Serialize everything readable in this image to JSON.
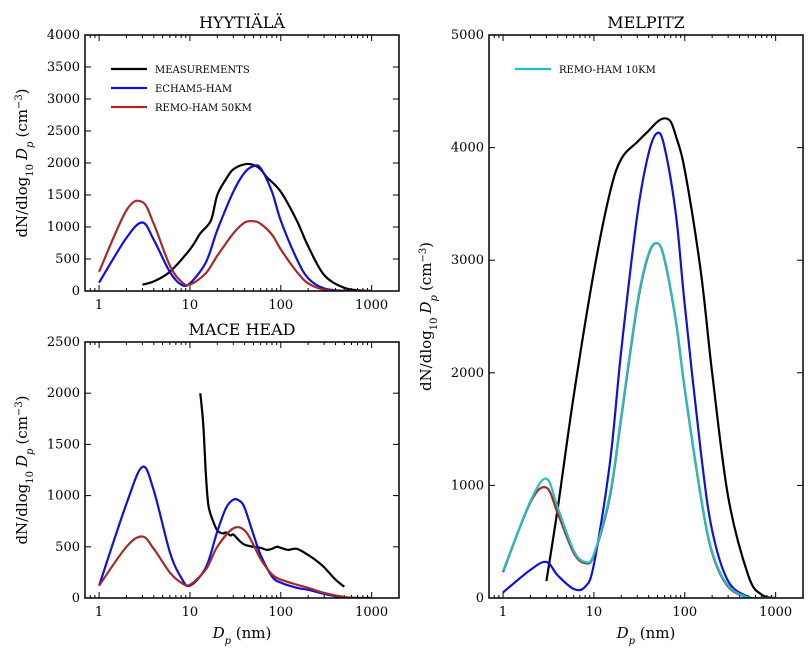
{
  "colors": {
    "MEASUREMENTS": "#000000",
    "ECHAM5-HAM": "#1010dd",
    "REMO-HAM 50KM": "#a52a2a",
    "REMO-HAM 10KM": "#20c0c0"
  },
  "chart_data": [
    {
      "id": "hyytiala",
      "type": "line",
      "title": "HYYTIÄLÄ",
      "xlabel": "",
      "ylabel": "dN/dlog10 Dp (cm−3)",
      "xscale": "log",
      "xlim": [
        0.7,
        2000
      ],
      "ylim": [
        0,
        4000
      ],
      "xticks": [
        1,
        10,
        100,
        1000
      ],
      "xtick_labels": [
        "1",
        "10",
        "100",
        "1000"
      ],
      "yticks": [
        0,
        500,
        1000,
        1500,
        2000,
        2500,
        3000,
        3500,
        4000
      ],
      "ytick_labels": [
        "0",
        "500",
        "1000",
        "1500",
        "2000",
        "2500",
        "3000",
        "3500",
        "4000"
      ],
      "legend": {
        "placement": "top-left",
        "entries": [
          "MEASUREMENTS",
          "ECHAM5-HAM",
          "REMO-HAM 50KM"
        ]
      },
      "series": [
        {
          "name": "MEASUREMENTS",
          "x": [
            3,
            4,
            6,
            10,
            13,
            17,
            20,
            25,
            30,
            40,
            50,
            60,
            70,
            100,
            150,
            200,
            300,
            500,
            800,
            1000
          ],
          "y": [
            100,
            150,
            300,
            650,
            900,
            1100,
            1500,
            1750,
            1900,
            1980,
            1970,
            1900,
            1780,
            1550,
            1100,
            700,
            250,
            50,
            5,
            0
          ]
        },
        {
          "name": "ECHAM5-HAM",
          "x": [
            1,
            2,
            3,
            4,
            6,
            8,
            10,
            15,
            20,
            30,
            40,
            50,
            60,
            80,
            100,
            150,
            200,
            300,
            500,
            700,
            1000
          ],
          "y": [
            130,
            830,
            1070,
            800,
            300,
            100,
            120,
            450,
            950,
            1550,
            1850,
            1950,
            1920,
            1550,
            1100,
            500,
            200,
            40,
            3,
            0,
            0
          ]
        },
        {
          "name": "REMO-HAM 50KM",
          "x": [
            1,
            2,
            3,
            4,
            6,
            8,
            10,
            15,
            20,
            30,
            40,
            50,
            60,
            80,
            100,
            150,
            200,
            300,
            500,
            700,
            1000
          ],
          "y": [
            300,
            1260,
            1390,
            1050,
            400,
            150,
            100,
            280,
            550,
            900,
            1070,
            1090,
            1050,
            880,
            650,
            300,
            120,
            20,
            0,
            0,
            0
          ]
        }
      ]
    },
    {
      "id": "macehead",
      "type": "line",
      "title": "MACE HEAD",
      "xlabel": "Dp (nm)",
      "ylabel": "dN/dlog10 Dp (cm−3)",
      "xscale": "log",
      "xlim": [
        0.7,
        2000
      ],
      "ylim": [
        0,
        2500
      ],
      "xticks": [
        1,
        10,
        100,
        1000
      ],
      "xtick_labels": [
        "1",
        "10",
        "100",
        "1000"
      ],
      "yticks": [
        0,
        500,
        1000,
        1500,
        2000,
        2500
      ],
      "ytick_labels": [
        "0",
        "500",
        "1000",
        "1500",
        "2000",
        "2500"
      ],
      "legend": null,
      "series": [
        {
          "name": "MEASUREMENTS",
          "x": [
            13,
            14,
            15,
            16,
            18,
            20,
            23,
            25,
            28,
            30,
            35,
            40,
            50,
            60,
            70,
            80,
            90,
            100,
            120,
            150,
            200,
            250,
            300,
            400,
            500
          ],
          "y": [
            2000,
            1700,
            1200,
            900,
            750,
            660,
            630,
            640,
            610,
            620,
            560,
            520,
            500,
            490,
            470,
            480,
            500,
            490,
            470,
            480,
            420,
            360,
            300,
            180,
            110
          ]
        },
        {
          "name": "ECHAM5-HAM",
          "x": [
            1,
            2,
            3,
            4,
            6,
            8,
            10,
            15,
            20,
            25,
            30,
            35,
            40,
            50,
            60,
            80,
            100,
            150,
            200,
            300,
            500,
            700,
            1000
          ],
          "y": [
            120,
            920,
            1280,
            1050,
            450,
            200,
            120,
            300,
            650,
            880,
            960,
            950,
            880,
            620,
            420,
            210,
            150,
            100,
            80,
            40,
            5,
            0,
            0
          ]
        },
        {
          "name": "REMO-HAM 50KM",
          "x": [
            1,
            2,
            3,
            4,
            6,
            8,
            10,
            15,
            20,
            30,
            40,
            50,
            60,
            80,
            100,
            150,
            200,
            300,
            500,
            700,
            1000
          ],
          "y": [
            120,
            500,
            600,
            480,
            250,
            150,
            130,
            280,
            500,
            680,
            660,
            520,
            380,
            230,
            180,
            130,
            100,
            50,
            10,
            0,
            0
          ]
        }
      ]
    },
    {
      "id": "melpitz",
      "type": "line",
      "title": "MELPITZ",
      "xlabel": "Dp (nm)",
      "ylabel": "dN/dlog10 Dp (cm−3)",
      "xscale": "log",
      "xlim": [
        0.7,
        2000
      ],
      "ylim": [
        0,
        5000
      ],
      "xticks": [
        1,
        10,
        100,
        1000
      ],
      "xtick_labels": [
        "1",
        "10",
        "100",
        "1000"
      ],
      "yticks": [
        0,
        1000,
        2000,
        3000,
        4000,
        5000
      ],
      "ytick_labels": [
        "0",
        "1000",
        "2000",
        "3000",
        "4000",
        "5000"
      ],
      "legend": {
        "placement": "top-left",
        "entries": [
          "REMO-HAM 10KM"
        ]
      },
      "series": [
        {
          "name": "MEASUREMENTS",
          "x": [
            3,
            4,
            6,
            10,
            15,
            20,
            30,
            40,
            50,
            60,
            70,
            80,
            100,
            150,
            200,
            300,
            500,
            700,
            1000
          ],
          "y": [
            150,
            800,
            1800,
            2900,
            3600,
            3900,
            4050,
            4150,
            4230,
            4260,
            4230,
            4100,
            3800,
            2900,
            2000,
            900,
            200,
            30,
            0
          ]
        },
        {
          "name": "ECHAM5-HAM",
          "x": [
            1,
            2,
            3,
            4,
            6,
            8,
            10,
            15,
            20,
            30,
            40,
            50,
            60,
            80,
            100,
            150,
            200,
            300,
            500,
            700,
            1000
          ],
          "y": [
            50,
            250,
            320,
            200,
            80,
            100,
            300,
            1200,
            2200,
            3400,
            3950,
            4130,
            4000,
            3400,
            2600,
            1300,
            600,
            150,
            10,
            0,
            0
          ]
        },
        {
          "name": "REMO-HAM 50KM",
          "x": [
            1,
            2,
            3,
            4,
            6,
            8,
            10,
            15,
            20,
            30,
            40,
            50,
            60,
            80,
            100,
            150,
            200,
            300,
            500,
            700,
            1000
          ],
          "y": [
            230,
            850,
            980,
            750,
            400,
            310,
            380,
            900,
            1600,
            2600,
            3050,
            3150,
            3000,
            2450,
            1850,
            900,
            400,
            100,
            5,
            0,
            0
          ]
        },
        {
          "name": "REMO-HAM 10KM",
          "x": [
            1,
            2,
            3,
            4,
            6,
            8,
            10,
            15,
            20,
            30,
            40,
            50,
            60,
            80,
            100,
            150,
            200,
            300,
            500,
            700,
            1000
          ],
          "y": [
            240,
            860,
            1060,
            800,
            420,
            320,
            390,
            920,
            1620,
            2620,
            3060,
            3150,
            3010,
            2460,
            1860,
            910,
            410,
            110,
            5,
            0,
            0
          ]
        }
      ]
    }
  ]
}
